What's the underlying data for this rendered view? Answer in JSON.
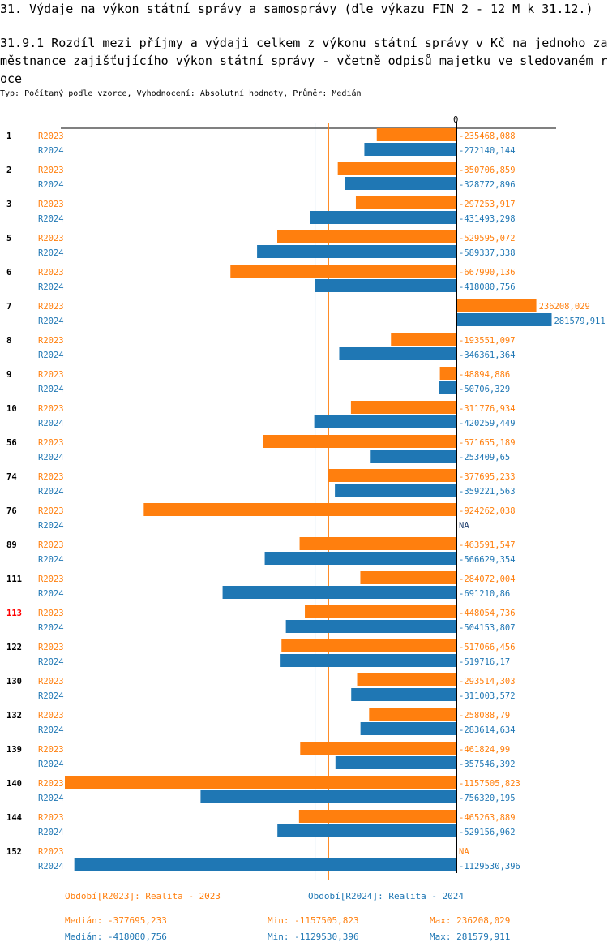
{
  "title": "31. Výdaje na výkon státní správy a samosprávy (dle výkazu FIN 2 - 12 M k 31.12.)",
  "subtitle": "31.9.1 Rozdíl mezi příjmy a výdaji celkem z výkonu státní správy v Kč na jednoho zaměstnance zajišťujícího výkon státní správy - včetně odpisů majetku ve sledovaném roce",
  "info": "Typ: Počítaný podle vzorce, Vyhodnocení: Absolutní hodnoty, Průměr: Medián",
  "colors": {
    "R2023": "#ff7f0e",
    "R2024": "#1f77b4",
    "highlight": "#ff0000"
  },
  "chart_data": {
    "type": "bar",
    "orientation": "horizontal",
    "zero_label": "0",
    "categories": [
      "1",
      "2",
      "3",
      "5",
      "6",
      "7",
      "8",
      "9",
      "10",
      "56",
      "74",
      "76",
      "89",
      "111",
      "113",
      "122",
      "130",
      "132",
      "139",
      "140",
      "144",
      "152"
    ],
    "highlight": "113",
    "series": [
      {
        "name": "R2023",
        "values": [
          -235468.088,
          -350706.859,
          -297253.917,
          -529595.072,
          -667990.136,
          236208.029,
          -193551.097,
          -48894.886,
          -311776.934,
          -571655.189,
          -377695.233,
          -924262.038,
          -463591.547,
          -284072.004,
          -448054.736,
          -517066.456,
          -293514.303,
          -258088.79,
          -461824.99,
          -1157505.823,
          -465263.889,
          null
        ],
        "labels": [
          "-235468,088",
          "-350706,859",
          "-297253,917",
          "-529595,072",
          "-667990,136",
          "236208,029",
          "-193551,097",
          "-48894,886",
          "-311776,934",
          "-571655,189",
          "-377695,233",
          "-924262,038",
          "-463591,547",
          "-284072,004",
          "-448054,736",
          "-517066,456",
          "-293514,303",
          "-258088,79",
          "-461824,99",
          "-1157505,823",
          "-465263,889",
          "NA"
        ]
      },
      {
        "name": "R2024",
        "values": [
          -272140.144,
          -328772.896,
          -431493.298,
          -589337.338,
          -418080.756,
          281579.911,
          -346361.364,
          -50706.329,
          -420259.449,
          -253409.65,
          -359221.563,
          null,
          -566629.354,
          -691210.86,
          -504153.807,
          -519716.17,
          -311003.572,
          -283614.634,
          -357546.392,
          -756320.195,
          -529156.962,
          -1129530.396
        ],
        "labels": [
          "-272140,144",
          "-328772,896",
          "-431493,298",
          "-589337,338",
          "-418080,756",
          "281579,911",
          "-346361,364",
          "-50706,329",
          "-420259,449",
          "-253409,65",
          "-359221,563",
          "NA",
          "-566629,354",
          "-691210,86",
          "-504153,807",
          "-519716,17",
          "-311003,572",
          "-283614,634",
          "-357546,392",
          "-756320,195",
          "-529156,962",
          "-1129530,396"
        ]
      }
    ],
    "medians": {
      "R2023": -377695.233,
      "R2024": -418080.756
    },
    "xlim": [
      -1157505.823,
      281579.911
    ]
  },
  "legend": {
    "R2023": "Období[R2023]: Realita - 2023",
    "R2024": "Období[R2024]: Realita - 2024"
  },
  "stats": {
    "R2023": {
      "median": "Medián: -377695,233",
      "min": "Min: -1157505,823",
      "max": "Max: 236208,029"
    },
    "R2024": {
      "median": "Medián: -418080,756",
      "min": "Min: -1129530,396",
      "max": "Max: 281579,911"
    }
  }
}
